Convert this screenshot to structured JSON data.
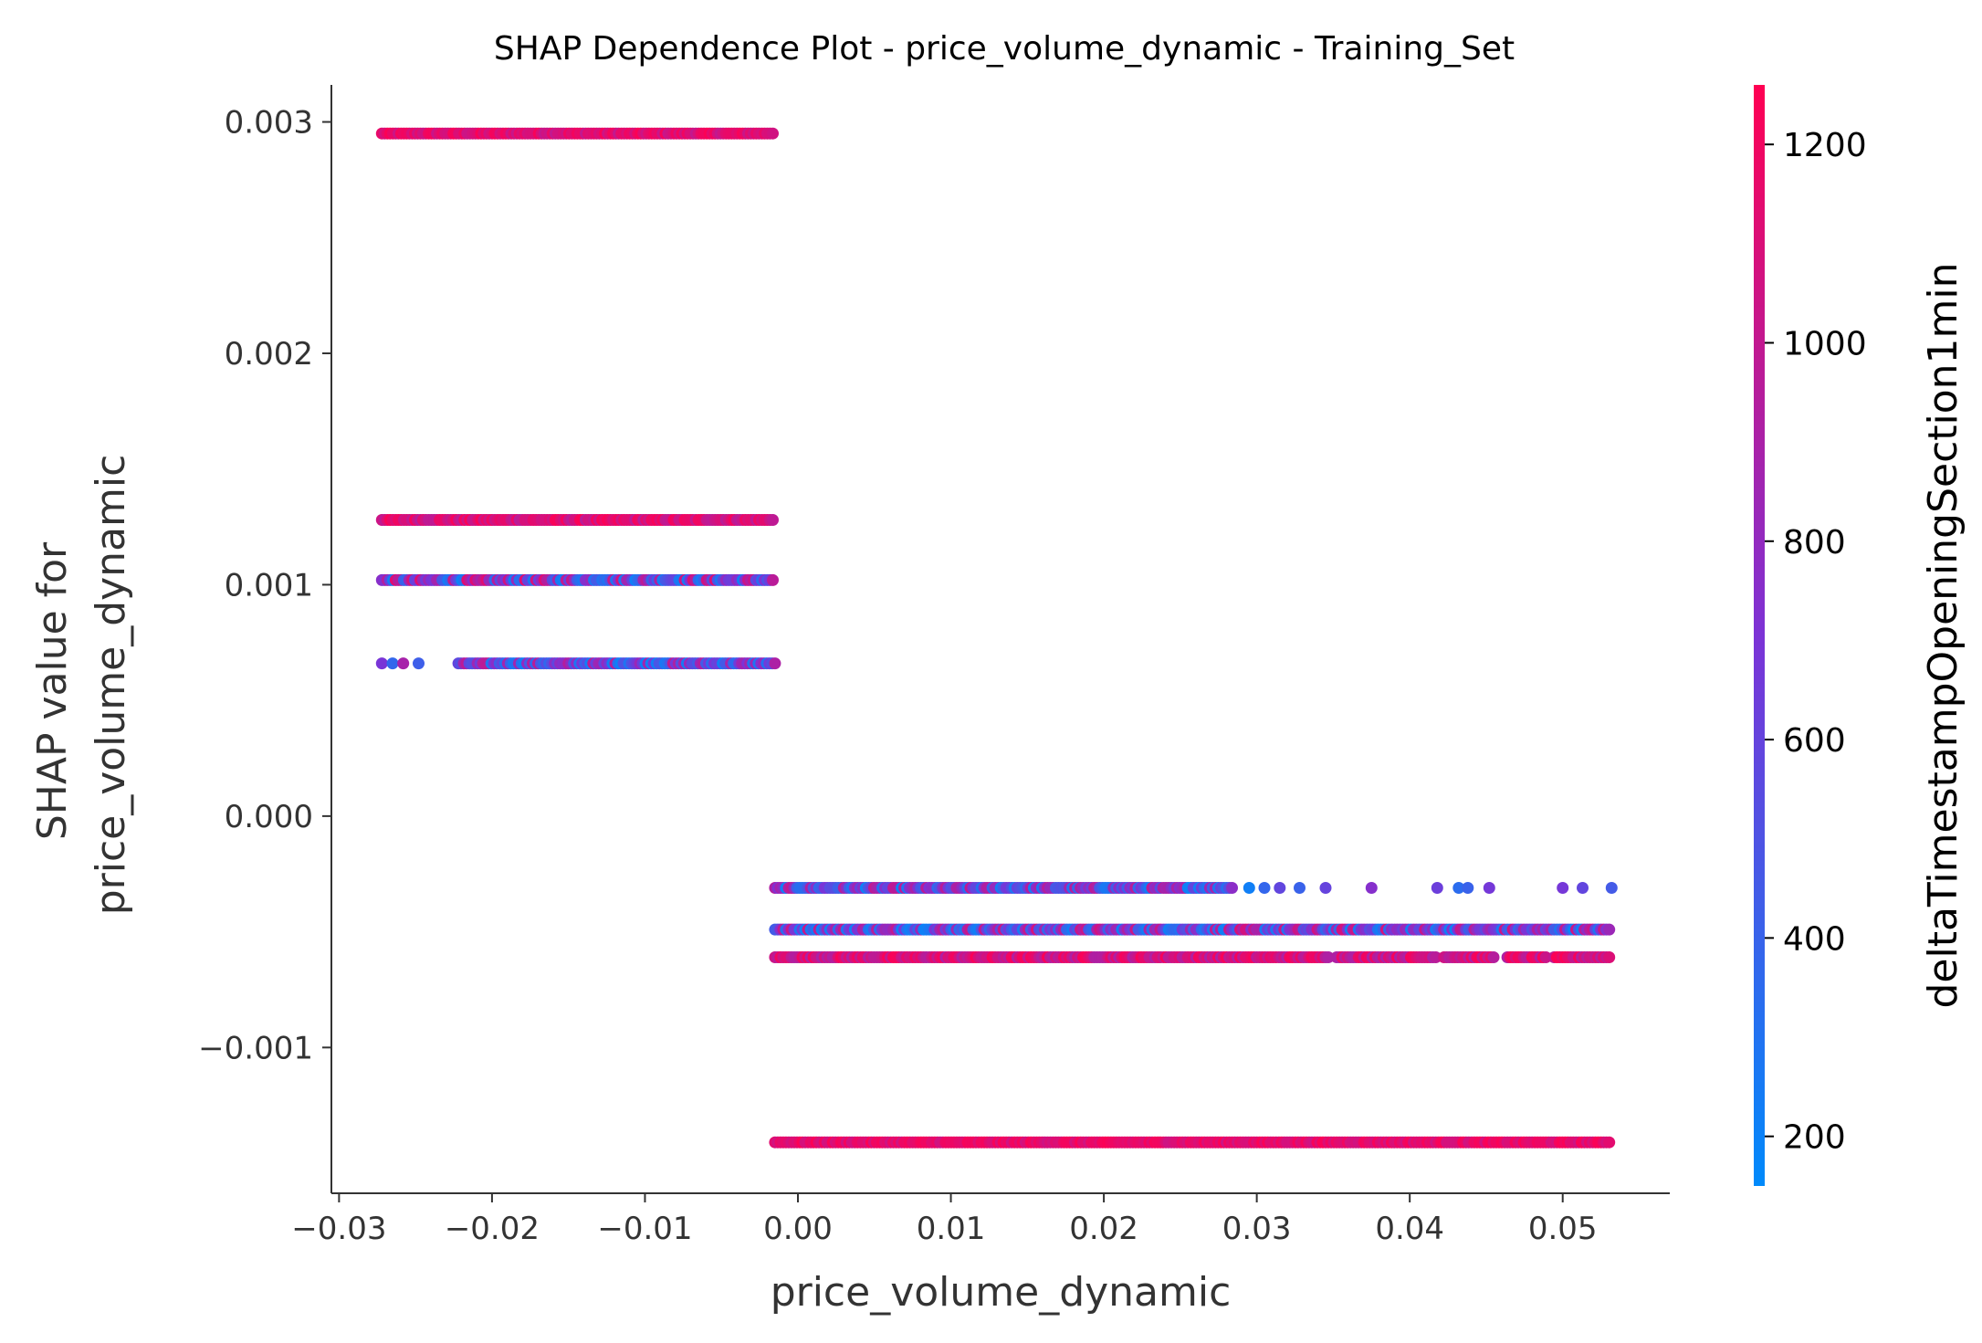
{
  "chart_data": {
    "type": "scatter",
    "title": "SHAP Dependence Plot - price_volume_dynamic - Training_Set",
    "xlabel": "price_volume_dynamic",
    "ylabel_lines": [
      "SHAP value for",
      "price_volume_dynamic"
    ],
    "xlim": [
      -0.0305,
      0.057
    ],
    "ylim": [
      -0.00163,
      0.00316
    ],
    "x_ticks": [
      -0.03,
      -0.02,
      -0.01,
      0.0,
      0.01,
      0.02,
      0.03,
      0.04,
      0.05
    ],
    "x_tick_labels": [
      "−0.03",
      "−0.02",
      "−0.01",
      "0.00",
      "0.01",
      "0.02",
      "0.03",
      "0.04",
      "0.05"
    ],
    "y_ticks": [
      -0.001,
      0.0,
      0.001,
      0.002,
      0.003
    ],
    "y_tick_labels": [
      "−0.001",
      "0.000",
      "0.001",
      "0.002",
      "0.003"
    ],
    "grid": false,
    "colorbar": {
      "label": "deltaTimestampOpeningSection1min",
      "range": [
        150,
        1260
      ],
      "ticks": [
        200,
        400,
        600,
        800,
        1000,
        1200
      ],
      "tick_labels": [
        "200",
        "400",
        "600",
        "800",
        "1000",
        "1200"
      ],
      "color_low": "#008afb",
      "color_mid": "#7c33d6",
      "color_high": "#ff0052"
    },
    "series": [
      {
        "y": 0.00295,
        "x_range": [
          -0.0272,
          -0.0015
        ],
        "color_range": [
          1000,
          1250
        ],
        "x_isolated": [],
        "x_gaps": []
      },
      {
        "y": 0.00128,
        "x_range": [
          -0.0272,
          -0.0015
        ],
        "color_range": [
          950,
          1250
        ],
        "x_isolated": [],
        "x_gaps": []
      },
      {
        "y": 0.00102,
        "x_range": [
          -0.0272,
          -0.0015
        ],
        "color_range": [
          200,
          1150
        ],
        "x_isolated": [],
        "x_gaps": []
      },
      {
        "y": 0.00066,
        "x_range": [
          -0.0222,
          -0.0015
        ],
        "color_range": [
          200,
          1000
        ],
        "x_isolated": [
          -0.0272,
          -0.0265,
          -0.0258,
          -0.0248
        ],
        "x_gaps": []
      },
      {
        "y": -0.00031,
        "x_range": [
          -0.0015,
          0.0285
        ],
        "color_range": [
          200,
          1000
        ],
        "x_isolated": [
          0.0295,
          0.0305,
          0.0315,
          0.0328,
          0.0345,
          0.0375,
          0.0418,
          0.0432,
          0.0438,
          0.0452,
          0.05,
          0.0513,
          0.0532
        ],
        "x_gaps": []
      },
      {
        "y": -0.00049,
        "x_range": [
          -0.0015,
          0.0532
        ],
        "color_range": [
          200,
          1100
        ],
        "x_isolated": [],
        "x_gaps": []
      },
      {
        "y": -0.00061,
        "x_range": [
          -0.0015,
          0.0532
        ],
        "color_range": [
          900,
          1250
        ],
        "x_isolated": [],
        "x_gaps": [
          [
            0.0348,
            0.0352
          ],
          [
            0.0418,
            0.0422
          ],
          [
            0.0455,
            0.0462
          ],
          [
            0.049,
            0.0494
          ]
        ]
      },
      {
        "y": -0.00141,
        "x_range": [
          -0.0015,
          0.0532
        ],
        "color_range": [
          1050,
          1250
        ],
        "x_isolated": [],
        "x_gaps": []
      }
    ]
  }
}
